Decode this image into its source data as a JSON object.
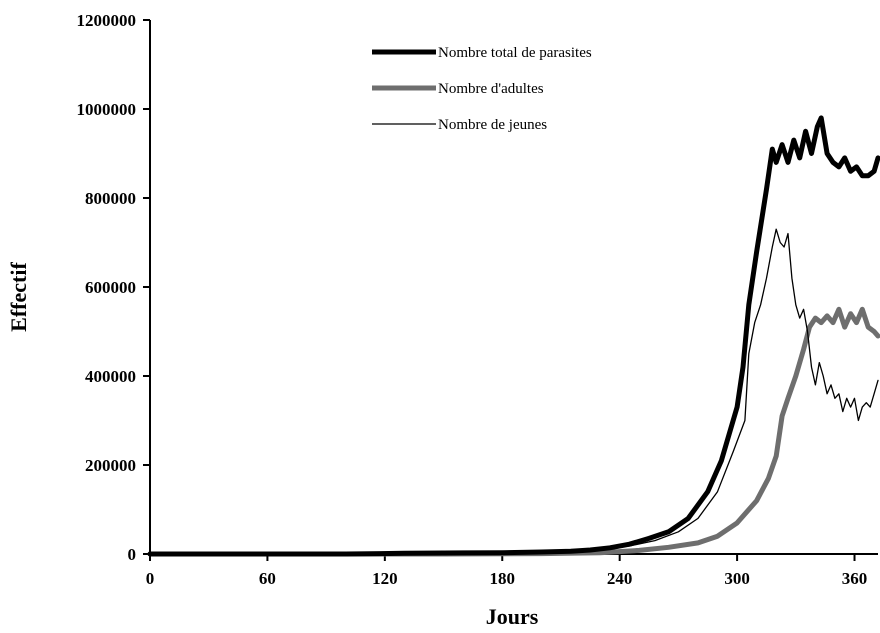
{
  "chart_data": {
    "type": "line",
    "title": "",
    "xlabel": "Jours",
    "ylabel": "Effectif",
    "xlim": [
      0,
      372
    ],
    "ylim": [
      0,
      1200000
    ],
    "x_ticks": [
      0,
      60,
      120,
      180,
      240,
      300,
      360
    ],
    "y_ticks": [
      0,
      200000,
      400000,
      600000,
      800000,
      1000000,
      1200000
    ],
    "y_tick_labels": [
      "0",
      "200000",
      "400000",
      "600000",
      "800000",
      "1000000",
      "1200000"
    ],
    "grid": false,
    "legend_position": "top-center",
    "series": [
      {
        "name": "Nombre total de parasites",
        "color": "#000000",
        "style": "thick",
        "points": [
          [
            0,
            0
          ],
          [
            100,
            0
          ],
          [
            130,
            1500
          ],
          [
            160,
            2500
          ],
          [
            180,
            3000
          ],
          [
            200,
            4500
          ],
          [
            215,
            6000
          ],
          [
            225,
            9000
          ],
          [
            235,
            14000
          ],
          [
            245,
            22000
          ],
          [
            255,
            35000
          ],
          [
            265,
            50000
          ],
          [
            275,
            80000
          ],
          [
            285,
            140000
          ],
          [
            292,
            210000
          ],
          [
            300,
            330000
          ],
          [
            303,
            420000
          ],
          [
            306,
            560000
          ],
          [
            310,
            680000
          ],
          [
            315,
            820000
          ],
          [
            318,
            910000
          ],
          [
            320,
            880000
          ],
          [
            323,
            920000
          ],
          [
            326,
            880000
          ],
          [
            329,
            930000
          ],
          [
            332,
            890000
          ],
          [
            335,
            950000
          ],
          [
            338,
            900000
          ],
          [
            341,
            960000
          ],
          [
            343,
            980000
          ],
          [
            346,
            900000
          ],
          [
            349,
            880000
          ],
          [
            352,
            870000
          ],
          [
            355,
            890000
          ],
          [
            358,
            860000
          ],
          [
            361,
            870000
          ],
          [
            364,
            850000
          ],
          [
            367,
            850000
          ],
          [
            370,
            860000
          ],
          [
            372,
            890000
          ]
        ]
      },
      {
        "name": "Nombre d'adultes",
        "color": "#6e6e6e",
        "style": "thick",
        "points": [
          [
            0,
            0
          ],
          [
            150,
            0
          ],
          [
            200,
            1000
          ],
          [
            230,
            3000
          ],
          [
            250,
            8000
          ],
          [
            265,
            15000
          ],
          [
            280,
            25000
          ],
          [
            290,
            40000
          ],
          [
            300,
            70000
          ],
          [
            310,
            120000
          ],
          [
            316,
            170000
          ],
          [
            320,
            220000
          ],
          [
            323,
            310000
          ],
          [
            326,
            350000
          ],
          [
            330,
            400000
          ],
          [
            334,
            460000
          ],
          [
            337,
            510000
          ],
          [
            340,
            530000
          ],
          [
            343,
            520000
          ],
          [
            346,
            535000
          ],
          [
            349,
            520000
          ],
          [
            352,
            550000
          ],
          [
            355,
            510000
          ],
          [
            358,
            540000
          ],
          [
            361,
            520000
          ],
          [
            364,
            550000
          ],
          [
            367,
            510000
          ],
          [
            370,
            500000
          ],
          [
            372,
            490000
          ]
        ]
      },
      {
        "name": "Nombre de jeunes",
        "color": "#000000",
        "style": "thin",
        "points": [
          [
            0,
            0
          ],
          [
            130,
            0
          ],
          [
            180,
            1500
          ],
          [
            210,
            4000
          ],
          [
            230,
            10000
          ],
          [
            245,
            18000
          ],
          [
            258,
            30000
          ],
          [
            270,
            50000
          ],
          [
            280,
            80000
          ],
          [
            290,
            140000
          ],
          [
            298,
            230000
          ],
          [
            304,
            300000
          ],
          [
            306,
            450000
          ],
          [
            309,
            520000
          ],
          [
            312,
            560000
          ],
          [
            315,
            620000
          ],
          [
            318,
            690000
          ],
          [
            320,
            730000
          ],
          [
            322,
            700000
          ],
          [
            324,
            690000
          ],
          [
            326,
            720000
          ],
          [
            328,
            620000
          ],
          [
            330,
            560000
          ],
          [
            332,
            530000
          ],
          [
            334,
            550000
          ],
          [
            336,
            500000
          ],
          [
            338,
            420000
          ],
          [
            340,
            380000
          ],
          [
            342,
            430000
          ],
          [
            344,
            400000
          ],
          [
            346,
            360000
          ],
          [
            348,
            380000
          ],
          [
            350,
            350000
          ],
          [
            352,
            360000
          ],
          [
            354,
            320000
          ],
          [
            356,
            350000
          ],
          [
            358,
            330000
          ],
          [
            360,
            350000
          ],
          [
            362,
            300000
          ],
          [
            364,
            330000
          ],
          [
            366,
            340000
          ],
          [
            368,
            330000
          ],
          [
            370,
            360000
          ],
          [
            372,
            390000
          ]
        ]
      }
    ]
  }
}
